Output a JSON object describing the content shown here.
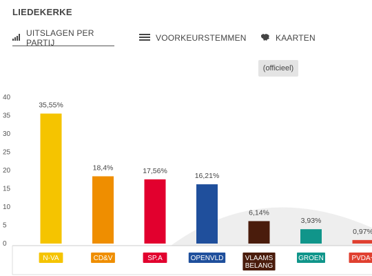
{
  "header": {
    "title": "LIEDEKERKE"
  },
  "tabs": [
    {
      "label": "UITSLAGEN PER PARTIJ",
      "icon": "bar-chart-icon",
      "active": true
    },
    {
      "label": "VOORKEURSTEMMEN",
      "icon": "list-icon",
      "active": false
    },
    {
      "label": "KAARTEN",
      "icon": "map-icon",
      "active": false
    }
  ],
  "status_badge": "(officieel)",
  "chart_data": {
    "type": "bar",
    "categories": [
      "N-VA",
      "CD&V",
      "SP.A",
      "OPENVLD",
      "VLAAMS BELANG",
      "GROEN",
      "PVDA+"
    ],
    "category_lines": [
      [
        "N-VA"
      ],
      [
        "CD&V"
      ],
      [
        "SP.A"
      ],
      [
        "OPENVLD"
      ],
      [
        "VLAAMS",
        "BELANG"
      ],
      [
        "GROEN"
      ],
      [
        "PVDA+"
      ]
    ],
    "values": [
      35.55,
      18.4,
      17.56,
      16.21,
      6.14,
      3.93,
      0.97
    ],
    "data_labels": [
      "35,55%",
      "18,4%",
      "17,56%",
      "16,21%",
      "6,14%",
      "3,93%",
      "0,97%"
    ],
    "colors": [
      "#f5c400",
      "#ef8e00",
      "#e2002e",
      "#1f4f9c",
      "#4a1c0c",
      "#10958a",
      "#e04030"
    ],
    "label_text_colors": [
      "#ffffff",
      "#ffffff",
      "#ffffff",
      "#ffffff",
      "#ffffff",
      "#ffffff",
      "#ffffff"
    ],
    "yticks": [
      0,
      5,
      10,
      15,
      20,
      25,
      30,
      35,
      40
    ],
    "ylim": [
      0,
      40
    ],
    "grid": false,
    "title": "",
    "xlabel": "",
    "ylabel": ""
  }
}
